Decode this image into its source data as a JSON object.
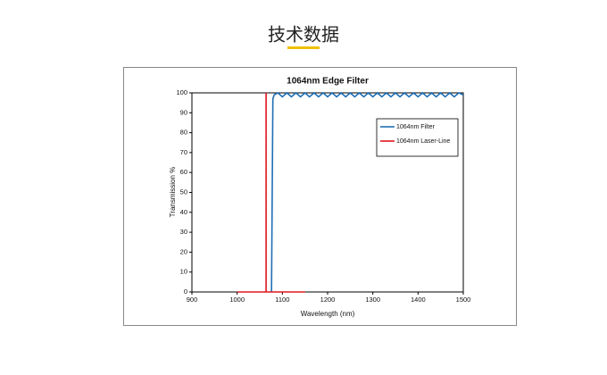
{
  "header": {
    "title": "技术数据"
  },
  "chart_data": {
    "type": "line",
    "title": "1064nm Edge Filter",
    "x_label": "Wavelength (nm)",
    "y_label": "Transmission %",
    "xlim": [
      900,
      1500
    ],
    "xticks": [
      900,
      1000,
      1100,
      1200,
      1300,
      1400,
      1500
    ],
    "ylim": [
      0,
      100
    ],
    "yticks": [
      0,
      10,
      20,
      30,
      40,
      50,
      60,
      70,
      80,
      90,
      100
    ],
    "grid": false,
    "legend": "upper right",
    "series": [
      {
        "name": "1064nm Filter",
        "color": "#1f6fb4",
        "x": [
          1076,
          1079,
          1082,
          1090,
          1100,
          1110,
          1120,
          1130,
          1140,
          1150,
          1160,
          1170,
          1180,
          1190,
          1200,
          1210,
          1220,
          1230,
          1240,
          1250,
          1260,
          1270,
          1280,
          1290,
          1300,
          1310,
          1320,
          1330,
          1340,
          1350,
          1360,
          1370,
          1380,
          1390,
          1400,
          1410,
          1420,
          1430,
          1440,
          1450,
          1460,
          1470,
          1480,
          1490,
          1500
        ],
        "values": [
          0,
          97,
          99,
          100,
          98,
          100,
          98,
          100,
          98,
          100,
          98,
          100,
          98,
          100,
          98,
          100,
          98,
          100,
          98,
          100,
          98,
          100,
          98,
          100,
          98,
          100,
          98,
          100,
          98,
          100,
          98,
          100,
          98,
          100,
          98,
          100,
          98,
          100,
          98,
          100,
          98,
          100,
          98,
          100,
          99
        ]
      },
      {
        "name": "1064nm Laser-Line",
        "color": "#e0161e",
        "x": [
          1000,
          1064,
          1064,
          1064,
          1150
        ],
        "values": [
          0,
          0,
          100,
          0,
          0
        ]
      }
    ]
  }
}
